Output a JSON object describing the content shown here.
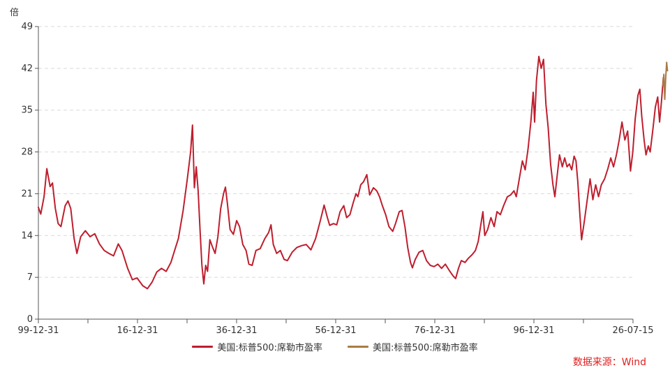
{
  "chart_data": {
    "type": "line",
    "y_unit": "倍",
    "ylim": [
      0,
      49
    ],
    "y_ticks": [
      0,
      7,
      14,
      21,
      28,
      35,
      42,
      49
    ],
    "x_range": [
      "1899-12-31",
      "2026-07-15"
    ],
    "x_tick_labels": [
      "99-12-31",
      "16-12-31",
      "36-12-31",
      "56-12-31",
      "76-12-31",
      "96-12-31",
      "26-07-15"
    ],
    "grid": true,
    "legend_position": "bottom",
    "series": [
      {
        "name": "美国:标普500:席勒市盈率",
        "color": "#be1e2d",
        "points": [
          [
            1899.96,
            18.8
          ],
          [
            1900.5,
            17.6
          ],
          [
            1901.2,
            20.5
          ],
          [
            1901.8,
            25.2
          ],
          [
            1902.5,
            22.2
          ],
          [
            1903.0,
            22.8
          ],
          [
            1903.6,
            18.6
          ],
          [
            1904.2,
            16.0
          ],
          [
            1904.8,
            15.5
          ],
          [
            1905.7,
            19.0
          ],
          [
            1906.3,
            19.8
          ],
          [
            1906.9,
            18.5
          ],
          [
            1907.6,
            13.5
          ],
          [
            1908.2,
            11.0
          ],
          [
            1909.0,
            13.8
          ],
          [
            1910.0,
            14.8
          ],
          [
            1911.0,
            13.8
          ],
          [
            1912.0,
            14.3
          ],
          [
            1913.0,
            12.6
          ],
          [
            1914.0,
            11.5
          ],
          [
            1915.0,
            11.0
          ],
          [
            1916.0,
            10.6
          ],
          [
            1917.0,
            12.6
          ],
          [
            1917.8,
            11.5
          ],
          [
            1919.0,
            8.5
          ],
          [
            1920.0,
            6.6
          ],
          [
            1921.0,
            6.9
          ],
          [
            1922.2,
            5.6
          ],
          [
            1923.2,
            5.1
          ],
          [
            1924.2,
            6.2
          ],
          [
            1925.2,
            7.9
          ],
          [
            1926.2,
            8.5
          ],
          [
            1927.2,
            8.0
          ],
          [
            1928.2,
            9.5
          ],
          [
            1929.0,
            11.5
          ],
          [
            1929.8,
            13.5
          ],
          [
            1930.8,
            18.2
          ],
          [
            1931.7,
            23.5
          ],
          [
            1932.4,
            28.0
          ],
          [
            1932.8,
            32.5
          ],
          [
            1933.2,
            22.0
          ],
          [
            1933.6,
            25.5
          ],
          [
            1934.0,
            21.5
          ],
          [
            1934.4,
            15.0
          ],
          [
            1934.8,
            9.0
          ],
          [
            1935.2,
            5.9
          ],
          [
            1935.6,
            9.0
          ],
          [
            1936.0,
            8.0
          ],
          [
            1936.5,
            13.3
          ],
          [
            1937.0,
            12.2
          ],
          [
            1937.6,
            11.0
          ],
          [
            1938.2,
            13.8
          ],
          [
            1938.8,
            18.5
          ],
          [
            1939.4,
            21.0
          ],
          [
            1939.8,
            22.1
          ],
          [
            1940.2,
            19.5
          ],
          [
            1940.8,
            15.0
          ],
          [
            1941.5,
            14.2
          ],
          [
            1942.2,
            16.5
          ],
          [
            1942.8,
            15.5
          ],
          [
            1943.5,
            12.5
          ],
          [
            1944.2,
            11.5
          ],
          [
            1944.8,
            9.2
          ],
          [
            1945.5,
            9.0
          ],
          [
            1946.3,
            11.5
          ],
          [
            1947.2,
            11.8
          ],
          [
            1948.2,
            13.5
          ],
          [
            1949.0,
            14.5
          ],
          [
            1949.5,
            15.8
          ],
          [
            1950.0,
            12.5
          ],
          [
            1950.7,
            11.0
          ],
          [
            1951.5,
            11.5
          ],
          [
            1952.3,
            10.0
          ],
          [
            1953.0,
            9.8
          ],
          [
            1954.0,
            11.2
          ],
          [
            1955.0,
            12.0
          ],
          [
            1956.0,
            12.3
          ],
          [
            1957.0,
            12.5
          ],
          [
            1958.0,
            11.6
          ],
          [
            1959.0,
            13.5
          ],
          [
            1960.0,
            16.5
          ],
          [
            1960.8,
            19.1
          ],
          [
            1961.5,
            17.0
          ],
          [
            1962.0,
            15.7
          ],
          [
            1962.8,
            16.0
          ],
          [
            1963.5,
            15.8
          ],
          [
            1964.2,
            18.0
          ],
          [
            1965.0,
            19.0
          ],
          [
            1965.6,
            17.0
          ],
          [
            1966.3,
            17.5
          ],
          [
            1967.0,
            19.5
          ],
          [
            1967.6,
            21.0
          ],
          [
            1968.0,
            20.5
          ],
          [
            1968.6,
            22.5
          ],
          [
            1969.2,
            23.0
          ],
          [
            1969.9,
            24.2
          ],
          [
            1970.5,
            20.8
          ],
          [
            1971.3,
            22.0
          ],
          [
            1972.0,
            21.5
          ],
          [
            1972.6,
            20.5
          ],
          [
            1973.2,
            19.0
          ],
          [
            1973.9,
            17.5
          ],
          [
            1974.6,
            15.5
          ],
          [
            1975.4,
            14.7
          ],
          [
            1976.0,
            16.0
          ],
          [
            1976.8,
            18.0
          ],
          [
            1977.4,
            18.2
          ],
          [
            1978.0,
            15.5
          ],
          [
            1978.6,
            12.0
          ],
          [
            1979.2,
            9.5
          ],
          [
            1979.6,
            8.6
          ],
          [
            1980.2,
            10.0
          ],
          [
            1981.0,
            11.2
          ],
          [
            1981.8,
            11.5
          ],
          [
            1982.6,
            9.8
          ],
          [
            1983.4,
            9.0
          ],
          [
            1984.2,
            8.8
          ],
          [
            1985.0,
            9.2
          ],
          [
            1985.8,
            8.5
          ],
          [
            1986.6,
            9.2
          ],
          [
            1987.4,
            8.2
          ],
          [
            1988.2,
            7.3
          ],
          [
            1988.8,
            6.8
          ],
          [
            1989.4,
            8.5
          ],
          [
            1990.0,
            9.8
          ],
          [
            1990.8,
            9.5
          ],
          [
            1991.5,
            10.2
          ],
          [
            1992.3,
            10.8
          ],
          [
            1993.0,
            11.5
          ],
          [
            1993.6,
            13.0
          ],
          [
            1994.2,
            16.0
          ],
          [
            1994.6,
            18.0
          ],
          [
            1995.0,
            14.0
          ],
          [
            1995.6,
            15.0
          ],
          [
            1996.3,
            17.0
          ],
          [
            1997.0,
            15.5
          ],
          [
            1997.6,
            18.0
          ],
          [
            1998.3,
            17.5
          ],
          [
            1999.0,
            19.0
          ],
          [
            1999.8,
            20.5
          ],
          [
            2000.5,
            20.8
          ],
          [
            2001.2,
            21.5
          ],
          [
            2001.7,
            20.5
          ],
          [
            2002.5,
            24.2
          ],
          [
            2003.0,
            26.5
          ],
          [
            2003.6,
            25.0
          ],
          [
            2004.2,
            28.5
          ],
          [
            2004.8,
            33.0
          ],
          [
            2005.3,
            38.0
          ],
          [
            2005.6,
            33.0
          ],
          [
            2006.0,
            40.0
          ],
          [
            2006.5,
            44.0
          ],
          [
            2007.0,
            42.0
          ],
          [
            2007.5,
            43.5
          ],
          [
            2008.0,
            36.0
          ],
          [
            2008.5,
            32.0
          ],
          [
            2009.0,
            26.0
          ],
          [
            2009.5,
            22.5
          ],
          [
            2009.9,
            20.5
          ],
          [
            2010.4,
            24.0
          ],
          [
            2010.9,
            27.5
          ],
          [
            2011.5,
            25.5
          ],
          [
            2012.0,
            27.0
          ],
          [
            2012.5,
            25.5
          ],
          [
            2013.0,
            26.0
          ],
          [
            2013.5,
            25.0
          ],
          [
            2014.0,
            27.3
          ],
          [
            2014.4,
            26.5
          ],
          [
            2014.8,
            23.0
          ],
          [
            2015.2,
            18.0
          ],
          [
            2015.6,
            13.3
          ],
          [
            2016.2,
            16.5
          ],
          [
            2016.8,
            20.0
          ],
          [
            2017.4,
            23.5
          ],
          [
            2018.0,
            20.0
          ],
          [
            2018.6,
            22.5
          ],
          [
            2019.2,
            20.5
          ],
          [
            2019.8,
            22.5
          ],
          [
            2020.5,
            23.5
          ],
          [
            2021.2,
            25.2
          ],
          [
            2021.8,
            27.0
          ],
          [
            2022.4,
            25.5
          ],
          [
            2023.0,
            27.5
          ],
          [
            2023.6,
            30.0
          ],
          [
            2024.2,
            33.0
          ],
          [
            2024.8,
            30.0
          ],
          [
            2025.4,
            31.5
          ],
          [
            2026.0,
            24.8
          ],
          [
            2026.5,
            28.0
          ],
          [
            2027.0,
            33.5
          ],
          [
            2027.6,
            37.5
          ],
          [
            2028.0,
            38.5
          ],
          [
            2028.4,
            34.0
          ],
          [
            2028.9,
            30.0
          ],
          [
            2029.3,
            27.5
          ],
          [
            2029.8,
            29.0
          ],
          [
            2030.2,
            28.0
          ],
          [
            2030.8,
            32.0
          ],
          [
            2031.3,
            35.5
          ],
          [
            2031.8,
            37.2
          ],
          [
            2032.2,
            33.0
          ],
          [
            2032.6,
            36.5
          ],
          [
            2033.0,
            40.5
          ]
        ]
      },
      {
        "name": "美国:标普500:席勒市盈率",
        "color": "#a87b45",
        "points": [
          [
            2032.9,
            39.0
          ],
          [
            2033.1,
            41.0
          ],
          [
            2033.3,
            36.8
          ],
          [
            2033.5,
            40.5
          ],
          [
            2033.7,
            43.0
          ],
          [
            2033.9,
            41.5
          ]
        ]
      }
    ]
  },
  "source_text": "数据来源：Wind"
}
